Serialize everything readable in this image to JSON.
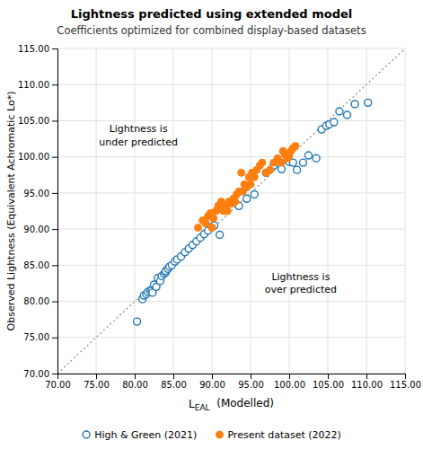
{
  "chart_data": {
    "type": "scatter",
    "title": "Lightness predicted using extended model",
    "subtitle": "Coefficients optimized for combined display-based datasets",
    "xlabel": [
      "L",
      "EAL",
      "  (Modelled)"
    ],
    "ylabel": "Observed Lightness (Equivalent Achromatic Lo*)",
    "xlim": [
      70,
      115
    ],
    "ylim": [
      70,
      115
    ],
    "xticks": [
      {
        "value": 70.0,
        "label": "70.00"
      },
      {
        "value": 75.0,
        "label": "75.00"
      },
      {
        "value": 80.0,
        "label": "80.00"
      },
      {
        "value": 85.0,
        "label": "85.00"
      },
      {
        "value": 90.0,
        "label": "90.00"
      },
      {
        "value": 95.0,
        "label": "95.00"
      },
      {
        "value": 100.0,
        "label": "100.00"
      },
      {
        "value": 105.0,
        "label": "105.00"
      },
      {
        "value": 110.0,
        "label": "110.00"
      },
      {
        "value": 115.0,
        "label": "115.00"
      }
    ],
    "yticks": [
      {
        "value": 70.0,
        "label": "70.00"
      },
      {
        "value": 75.0,
        "label": "75.00"
      },
      {
        "value": 80.0,
        "label": "80.00"
      },
      {
        "value": 85.0,
        "label": "85.00"
      },
      {
        "value": 90.0,
        "label": "90.00"
      },
      {
        "value": 95.0,
        "label": "95.00"
      },
      {
        "value": 100.0,
        "label": "100.00"
      },
      {
        "value": 105.0,
        "label": "105.00"
      },
      {
        "value": 110.0,
        "label": "110.00"
      },
      {
        "value": 115.0,
        "label": "115.00"
      }
    ],
    "grid": true,
    "legend": "bottom",
    "annotations": [
      "Lightness is\nunder predicted",
      "Lightness is\nover predicted"
    ],
    "series": [
      {
        "name": "High & Green (2021)",
        "marker": "circle-open",
        "x": [
          80.3,
          81.0,
          81.2,
          81.5,
          81.7,
          82.0,
          82.2,
          82.3,
          82.5,
          82.8,
          83.0,
          83.3,
          83.5,
          83.8,
          84.0,
          84.0,
          84.3,
          84.5,
          84.8,
          85.2,
          85.5,
          86.0,
          86.5,
          87.0,
          87.5,
          88.0,
          88.5,
          89.0,
          89.5,
          90.0,
          90.3,
          91.0,
          92.5,
          93.5,
          94.5,
          95.5,
          97.0,
          98.0,
          99.0,
          100.0,
          100.5,
          101.0,
          101.8,
          102.5,
          103.5,
          104.2,
          104.8,
          105.2,
          105.8,
          106.5,
          107.5,
          108.5,
          110.2
        ],
        "values": [
          77.2,
          80.3,
          80.8,
          81.0,
          81.3,
          81.5,
          81.5,
          81.2,
          82.3,
          82.0,
          83.2,
          82.8,
          83.5,
          83.8,
          84.0,
          84.2,
          84.5,
          84.8,
          85.0,
          85.5,
          85.8,
          86.2,
          86.8,
          87.3,
          87.8,
          88.3,
          88.8,
          89.3,
          89.8,
          90.3,
          90.5,
          89.2,
          93.8,
          93.2,
          94.2,
          94.8,
          97.8,
          98.8,
          98.3,
          99.3,
          99.2,
          98.2,
          99.2,
          100.2,
          99.8,
          103.8,
          104.3,
          104.5,
          104.8,
          106.3,
          105.8,
          107.3,
          107.5
        ]
      },
      {
        "name": "Present dataset (2022)",
        "marker": "circle",
        "x": [
          88.2,
          88.8,
          89.2,
          89.5,
          89.8,
          90.0,
          90.2,
          90.5,
          90.8,
          91.0,
          91.2,
          91.5,
          91.8,
          92.0,
          92.2,
          92.5,
          92.8,
          93.0,
          93.2,
          93.5,
          93.8,
          94.0,
          94.2,
          94.5,
          94.8,
          95.0,
          95.2,
          95.5,
          95.8,
          96.2,
          96.5,
          97.0,
          97.5,
          98.0,
          98.5,
          99.0,
          99.2,
          99.5,
          99.8,
          100.0,
          100.2,
          100.5,
          100.8
        ],
        "values": [
          90.2,
          91.2,
          90.8,
          91.8,
          92.2,
          90.2,
          91.5,
          92.5,
          93.2,
          92.8,
          93.8,
          92.5,
          93.2,
          92.5,
          93.8,
          93.5,
          94.2,
          93.8,
          94.8,
          95.2,
          97.8,
          95.2,
          96.2,
          95.8,
          97.2,
          96.2,
          97.8,
          97.2,
          98.2,
          98.8,
          99.2,
          97.8,
          98.2,
          99.2,
          99.8,
          99.2,
          100.8,
          100.2,
          99.8,
          100.2,
          100.8,
          101.2,
          101.5
        ]
      }
    ]
  }
}
